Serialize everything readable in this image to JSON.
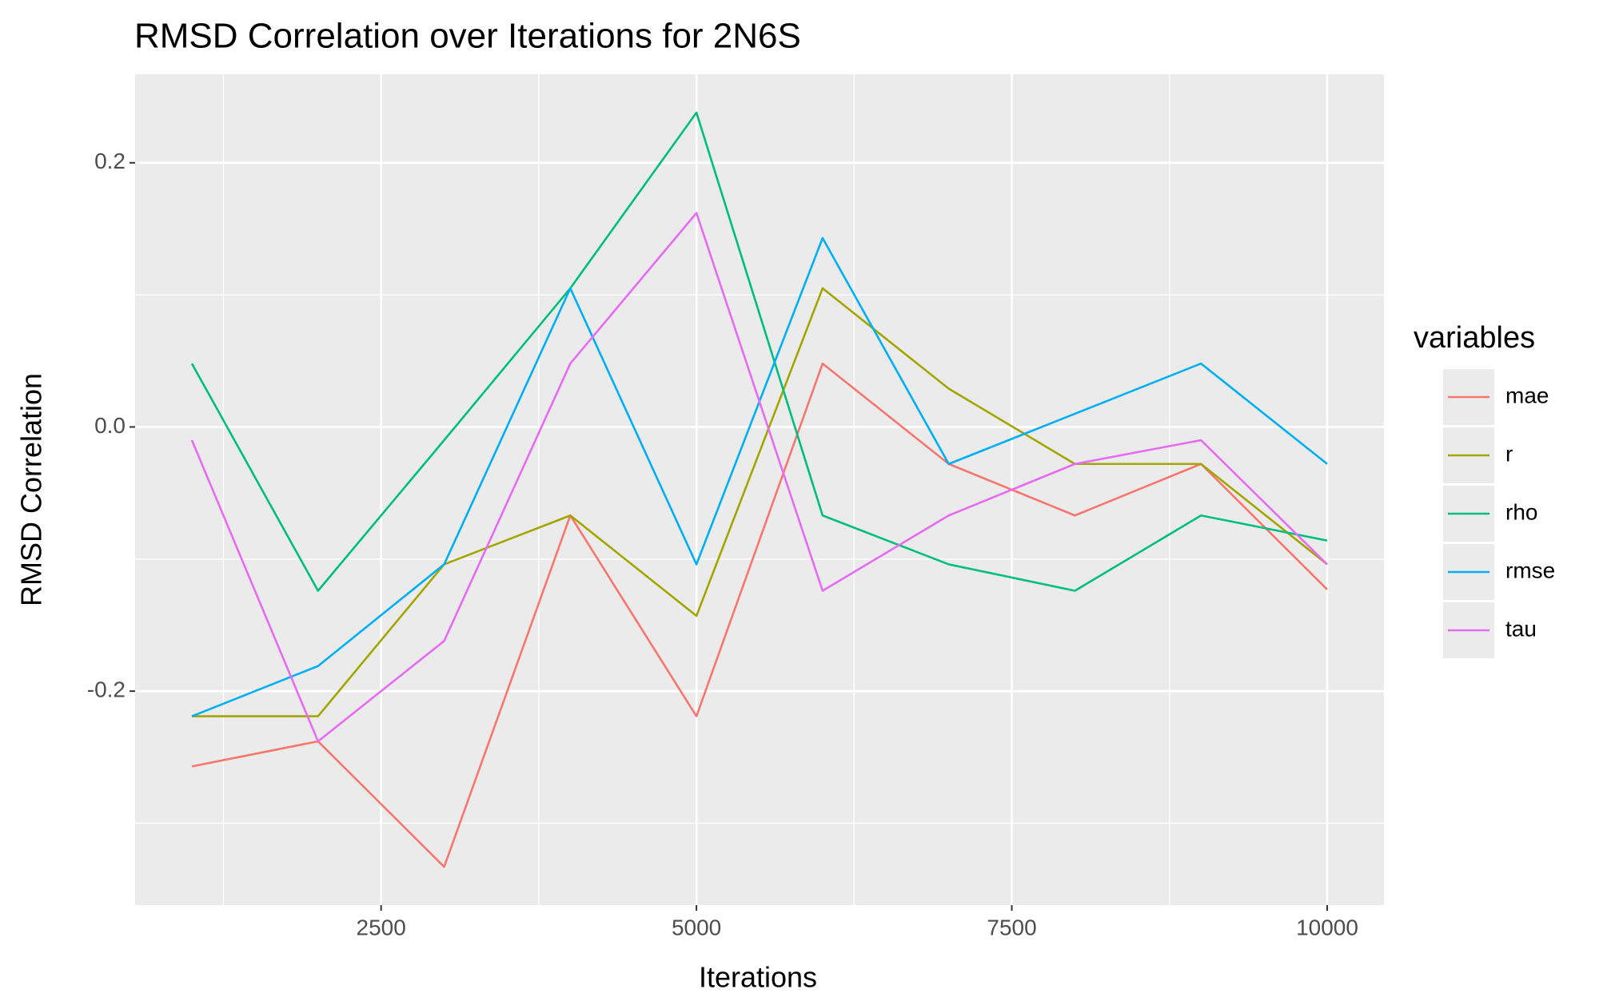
{
  "chart_data": {
    "type": "line",
    "title": "RMSD Correlation over Iterations for 2N6S",
    "x_label": "Iterations",
    "y_label": "RMSD Correlation",
    "x": [
      1000,
      2000,
      3000,
      4000,
      5000,
      6000,
      7000,
      8000,
      9000,
      10000
    ],
    "series": [
      {
        "name": "mae",
        "color": "#F8766D",
        "values": [
          -0.257,
          -0.238,
          -0.333,
          -0.067,
          -0.219,
          0.048,
          -0.028,
          -0.067,
          -0.028,
          -0.123
        ]
      },
      {
        "name": "r",
        "color": "#A3A500",
        "values": [
          -0.219,
          -0.219,
          -0.104,
          -0.067,
          -0.143,
          0.105,
          0.029,
          -0.028,
          -0.028,
          -0.104
        ]
      },
      {
        "name": "rho",
        "color": "#00BF7D",
        "values": [
          0.048,
          -0.124,
          -0.01,
          0.105,
          0.238,
          -0.067,
          -0.104,
          -0.124,
          -0.067,
          -0.086
        ]
      },
      {
        "name": "rmse",
        "color": "#00B0F6",
        "values": [
          -0.219,
          -0.181,
          -0.104,
          0.105,
          -0.104,
          0.143,
          -0.028,
          0.01,
          0.048,
          -0.028
        ]
      },
      {
        "name": "tau",
        "color": "#E76BF3",
        "values": [
          -0.01,
          -0.238,
          -0.162,
          0.048,
          0.162,
          -0.124,
          -0.067,
          -0.028,
          -0.01,
          -0.104
        ]
      }
    ],
    "legend_title": "variables",
    "legend_position": "right",
    "xlim": [
      550,
      10450
    ],
    "ylim": [
      -0.362,
      0.267
    ],
    "xticks": [
      2500,
      5000,
      7500,
      10000
    ],
    "yticks": [
      {
        "value": -0.2,
        "label": "-0.2"
      },
      {
        "value": 0,
        "label": "0.0"
      },
      {
        "value": 0.2,
        "label": "0.2"
      }
    ],
    "x_minor_ticks": [
      1250,
      3750,
      6250,
      8750
    ],
    "y_minor_ticks": [
      -0.3,
      -0.1,
      0.1
    ],
    "grid": true
  }
}
